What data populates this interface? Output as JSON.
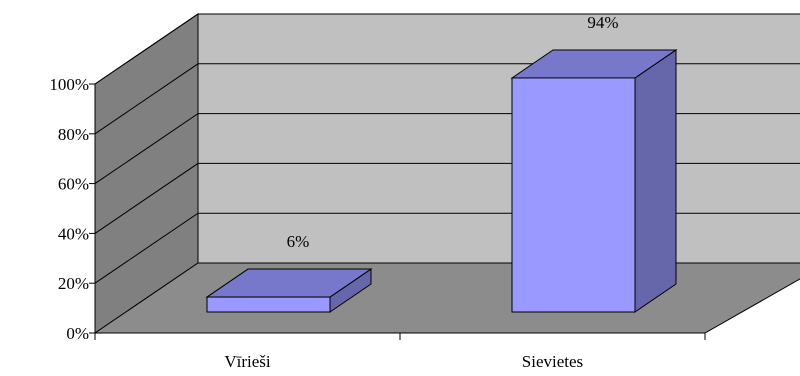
{
  "chart_data": {
    "type": "bar",
    "categories": [
      "Vīrieši",
      "Sievietes"
    ],
    "values": [
      6,
      94
    ],
    "data_labels": [
      "6%",
      "94%"
    ],
    "ylim": [
      0,
      100
    ],
    "yticks": [
      0,
      20,
      40,
      60,
      80,
      100
    ],
    "ytick_labels": [
      "0%",
      "20%",
      "40%",
      "60%",
      "80%",
      "100%"
    ],
    "grid": true,
    "legend": "none",
    "style": "3d",
    "colors": {
      "bar_front": "#9999ff",
      "bar_top": "#7777cc",
      "bar_side": "#6666aa",
      "back_wall": "#c0c0c0",
      "side_wall": "#808080",
      "floor": "#8c8c8c"
    }
  }
}
